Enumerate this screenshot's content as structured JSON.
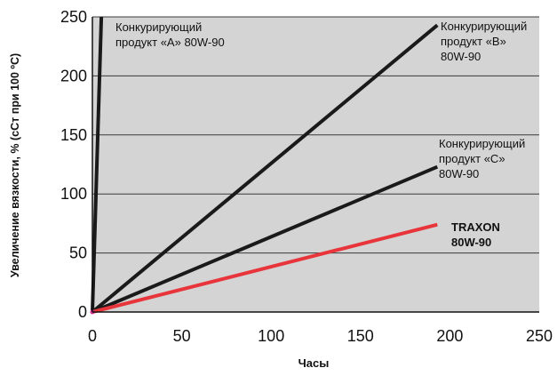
{
  "chart_data": {
    "type": "line",
    "title": "",
    "xlabel": "Часы",
    "ylabel": "Увеличение вязкости, % (сСт при 100 ºС)",
    "xlim": [
      0,
      250
    ],
    "ylim": [
      0,
      250
    ],
    "xticks": [
      0,
      50,
      100,
      150,
      200,
      250
    ],
    "yticks": [
      0,
      50,
      100,
      150,
      200,
      250
    ],
    "grid": "horizontal",
    "plot_background": "#d4d4d4",
    "series": [
      {
        "name": "Конкурирующий продукт «A» 80W-90",
        "label_lines": [
          "Конкурирующий",
          "продукт «A» 80W-90"
        ],
        "color": "#1a1a1a",
        "bold": false,
        "x": [
          0,
          5
        ],
        "y": [
          0,
          250
        ]
      },
      {
        "name": "Конкурирующий продукт «B» 80W-90",
        "label_lines": [
          "Конкурирующий",
          "продукт «B»",
          "80W-90"
        ],
        "color": "#1a1a1a",
        "bold": false,
        "x": [
          0,
          193
        ],
        "y": [
          0,
          243
        ]
      },
      {
        "name": "Конкурирующий продукт «C» 80W-90",
        "label_lines": [
          "Конкурирующий",
          "продукт «C»",
          "80W-90"
        ],
        "color": "#1a1a1a",
        "bold": false,
        "x": [
          0,
          193
        ],
        "y": [
          0,
          123
        ]
      },
      {
        "name": "TRAXON 80W-90",
        "label_lines": [
          "TRAXON",
          "80W-90"
        ],
        "color": "#e8353b",
        "bold": true,
        "x": [
          0,
          193
        ],
        "y": [
          0,
          74
        ]
      }
    ]
  }
}
